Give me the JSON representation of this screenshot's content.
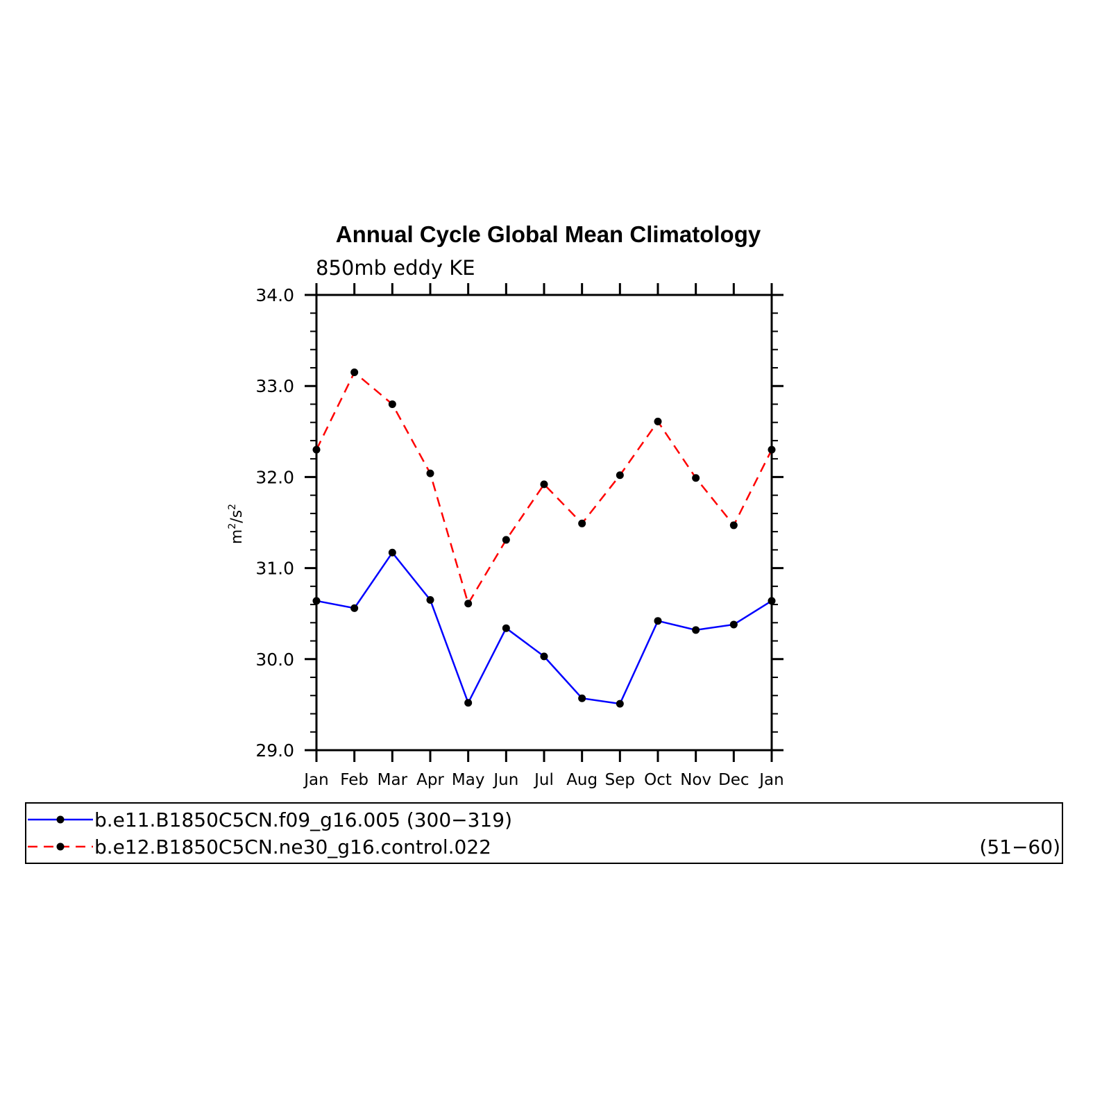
{
  "chart_data": {
    "type": "line",
    "title": "Annual Cycle Global Mean Climatology",
    "subtitle": "850mb eddy KE",
    "ylabel_base": "m",
    "ylabel_exp1": "2",
    "ylabel_mid": "/s",
    "ylabel_exp2": "2",
    "ylim": [
      29.0,
      34.0
    ],
    "yticks": [
      29.0,
      30.0,
      31.0,
      32.0,
      33.0,
      34.0
    ],
    "ytick_labels": [
      "29.0",
      "30.0",
      "31.0",
      "32.0",
      "33.0",
      "34.0"
    ],
    "categories": [
      "Jan",
      "Feb",
      "Mar",
      "Apr",
      "May",
      "Jun",
      "Jul",
      "Aug",
      "Sep",
      "Oct",
      "Nov",
      "Dec",
      "Jan"
    ],
    "series": [
      {
        "name": "b.e11.B1850C5CN.f09_g16.005 (300−319)",
        "color": "#0000ff",
        "dash": "solid",
        "values": [
          30.64,
          30.56,
          31.17,
          30.65,
          29.52,
          30.34,
          30.03,
          29.57,
          29.51,
          30.42,
          30.32,
          30.38,
          30.64
        ]
      },
      {
        "name": "b.e12.B1850C5CN.ne30_g16.control.022",
        "name_suffix": "(51−60)",
        "color": "#ff0000",
        "dash": "dashed",
        "values": [
          32.3,
          33.15,
          32.8,
          32.04,
          30.61,
          31.31,
          31.92,
          31.49,
          32.02,
          32.61,
          31.99,
          31.47,
          32.3
        ]
      }
    ],
    "legend_position": "bottom"
  }
}
